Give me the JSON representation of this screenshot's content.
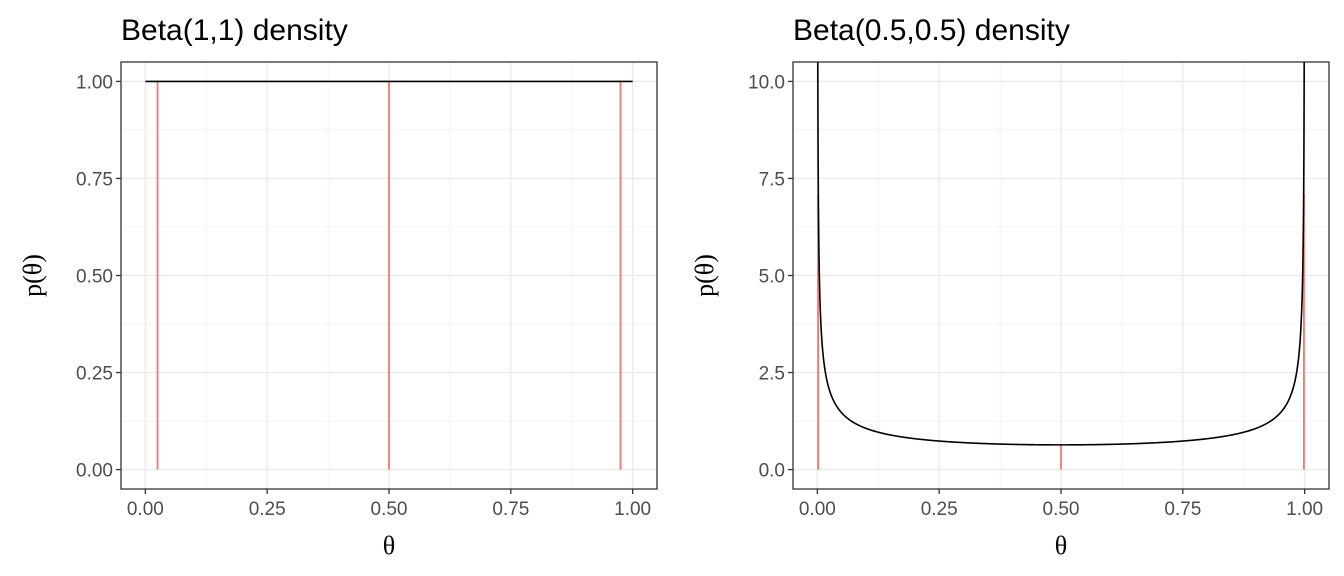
{
  "chart_data": [
    {
      "type": "line",
      "title": "Beta(1,1) density",
      "xlabel": "θ",
      "ylabel": "p(θ)",
      "alpha": 1,
      "beta": 1,
      "xlim": [
        -0.05,
        1.05
      ],
      "ylim": [
        -0.05,
        1.05
      ],
      "x_ticks": [
        0,
        0.25,
        0.5,
        0.75,
        1
      ],
      "x_tick_labels": [
        "0.00",
        "0.25",
        "0.50",
        "0.75",
        "1.00"
      ],
      "y_ticks": [
        0,
        0.25,
        0.5,
        0.75,
        1
      ],
      "y_tick_labels": [
        "0.00",
        "0.25",
        "0.50",
        "0.75",
        "1.00"
      ],
      "series": [
        {
          "values_x": [
            0,
            1
          ],
          "values_y": [
            1,
            1
          ],
          "color": "#000000"
        }
      ],
      "quantile_lines": [
        {
          "x": 0.025,
          "y": 1,
          "color": "#f8766d"
        },
        {
          "x": 0.5,
          "y": 1,
          "color": "#f8766d"
        },
        {
          "x": 0.975,
          "y": 1,
          "color": "#f8766d"
        }
      ],
      "grid": true
    },
    {
      "type": "line",
      "title": "Beta(0.5,0.5) density",
      "xlabel": "θ",
      "ylabel": "p(θ)",
      "alpha": 0.5,
      "beta": 0.5,
      "xlim": [
        -0.05,
        1.05
      ],
      "ylim": [
        -0.5,
        10.5
      ],
      "x_ticks": [
        0,
        0.25,
        0.5,
        0.75,
        1
      ],
      "x_tick_labels": [
        "0.00",
        "0.25",
        "0.50",
        "0.75",
        "1.00"
      ],
      "y_ticks": [
        0,
        2.5,
        5,
        7.5,
        10
      ],
      "y_tick_labels": [
        "0.0",
        "2.5",
        "5.0",
        "7.5",
        "10.0"
      ],
      "series": [
        {
          "values_x": [
            0.001,
            0.003,
            0.005,
            0.01,
            0.02,
            0.05,
            0.1,
            0.2,
            0.3,
            0.4,
            0.5,
            0.6,
            0.7,
            0.8,
            0.9,
            0.95,
            0.98,
            0.99,
            0.995,
            0.997,
            0.999
          ],
          "values_y": [
            10.07,
            5.82,
            4.51,
            3.2,
            2.27,
            1.46,
            1.06,
            0.8,
            0.69,
            0.65,
            0.64,
            0.65,
            0.69,
            0.8,
            1.06,
            1.46,
            2.27,
            3.2,
            4.51,
            5.82,
            10.07
          ],
          "color": "#000000"
        }
      ],
      "quantile_lines": [
        {
          "x": 0.0015,
          "y": 7.1,
          "color": "#f8766d"
        },
        {
          "x": 0.5,
          "y": 0.64,
          "color": "#f8766d"
        },
        {
          "x": 0.9985,
          "y": 7.1,
          "color": "#f8766d"
        }
      ],
      "grid": true
    }
  ]
}
